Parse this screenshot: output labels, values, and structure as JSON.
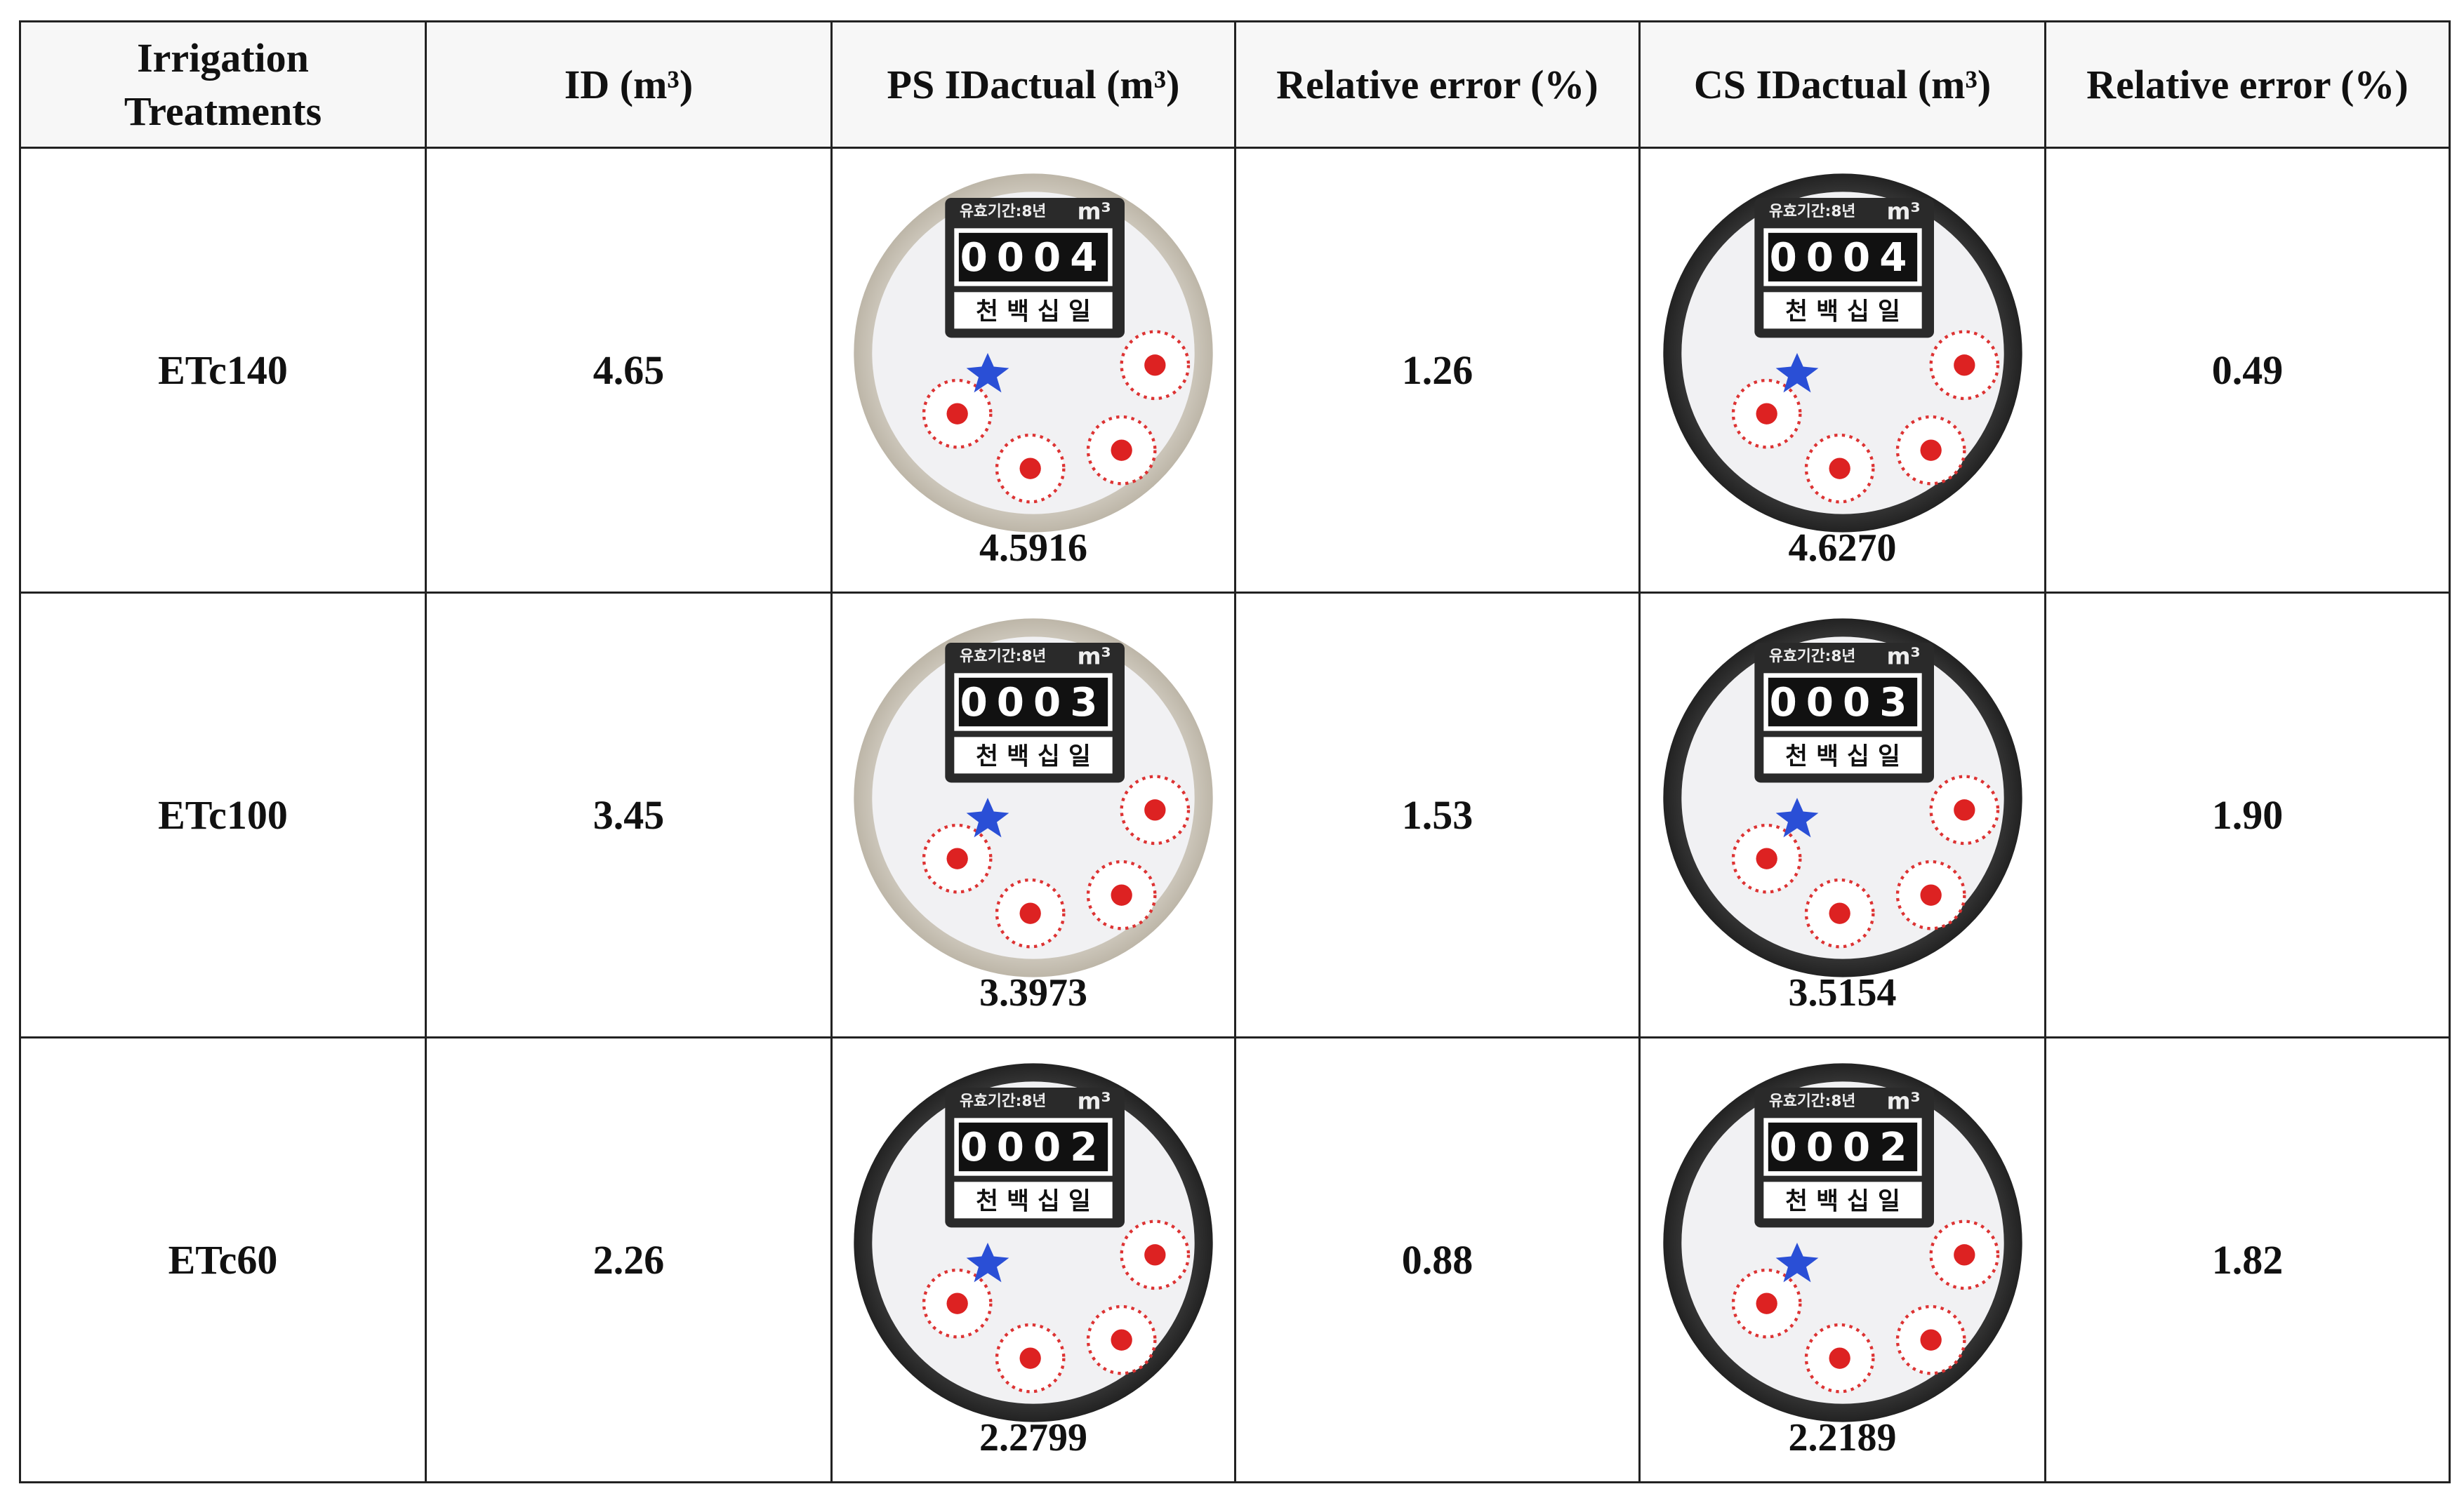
{
  "table": {
    "headers": [
      "Irrigation Treatments",
      "ID (m³)",
      "PS IDactual (m³)",
      "Relative error (%)",
      "CS IDactual (m³)",
      "Relative error (%)"
    ],
    "rows": [
      {
        "treatment": "ETc140",
        "id": "4.65",
        "ps_meter": "0004",
        "ps_actual": "4.5916",
        "ps_error": "1.26",
        "cs_meter": "0004",
        "cs_actual": "4.6270",
        "cs_error": "0.49"
      },
      {
        "treatment": "ETc100",
        "id": "3.45",
        "ps_meter": "0003",
        "ps_actual": "3.3973",
        "ps_error": "1.53",
        "cs_meter": "0003",
        "cs_actual": "3.5154",
        "cs_error": "1.90"
      },
      {
        "treatment": "ETc60",
        "id": "2.26",
        "ps_meter": "0002",
        "ps_actual": "2.2799",
        "ps_error": "0.88",
        "cs_meter": "0002",
        "cs_actual": "2.2189",
        "cs_error": "1.82"
      }
    ]
  },
  "meter_labels": {
    "validity": "유효기간:8년",
    "unit": "m³",
    "places": "천 백 십 일"
  }
}
